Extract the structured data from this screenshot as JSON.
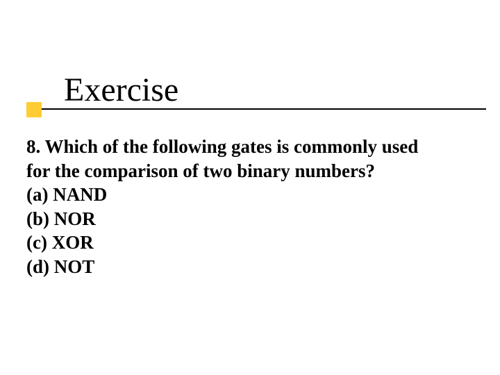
{
  "slide": {
    "title": "Exercise",
    "question_line1": "8. Which of the following gates is commonly used",
    "question_line2": "for the comparison of two binary numbers?",
    "option_a": "(a) NAND",
    "option_b": "(b) NOR",
    "option_c": "(c) XOR",
    "option_d": "(d) NOT",
    "accent_color": "#ffcc33",
    "underline_color": "#000000",
    "text_color": "#000000",
    "title_fontsize": 48,
    "body_fontsize": 27,
    "background_color": "#ffffff"
  }
}
